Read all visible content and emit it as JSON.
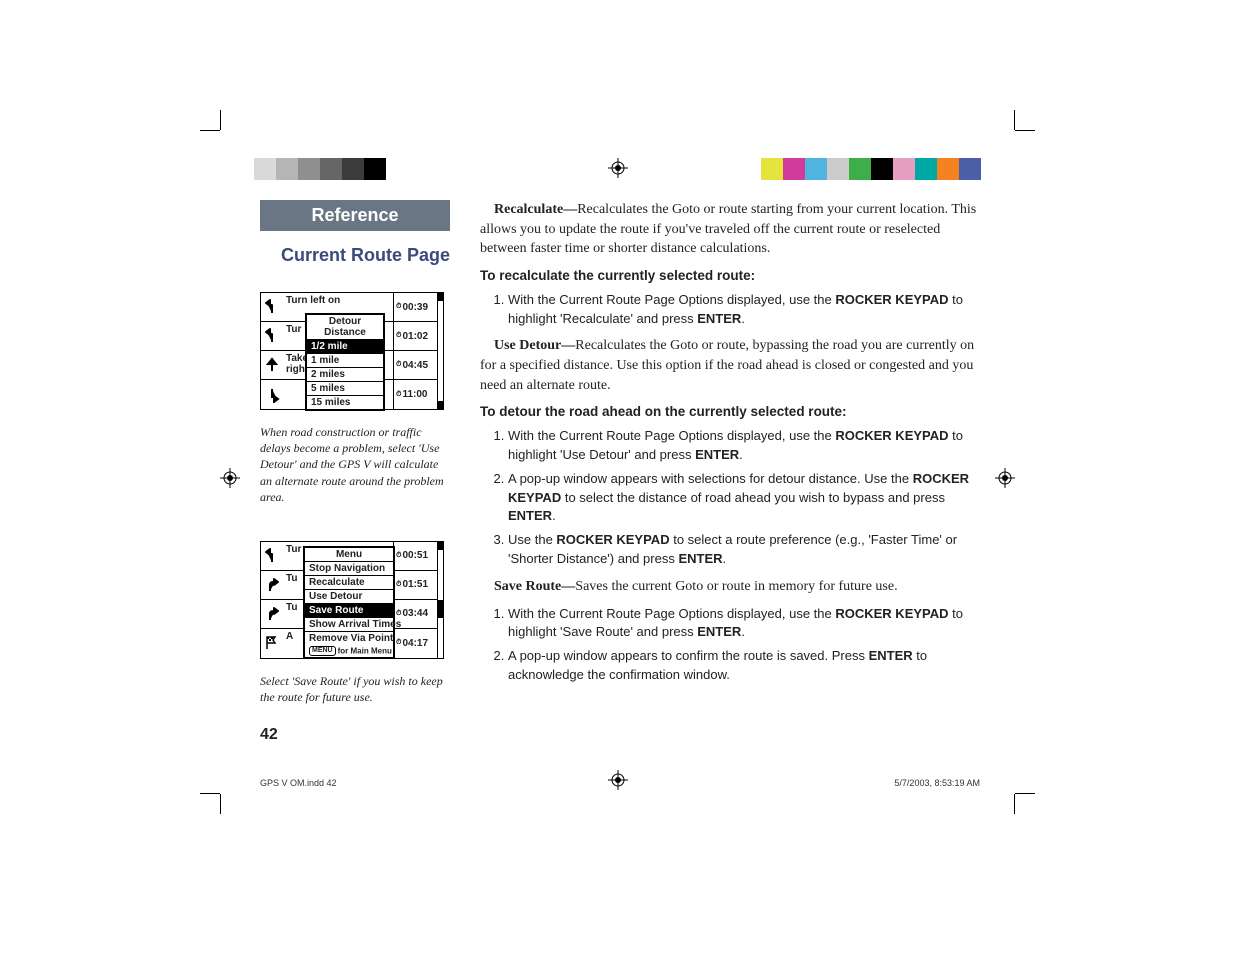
{
  "header": {
    "reference": "Reference",
    "section": "Current Route Page"
  },
  "colorbar_left": [
    "#d9d9d9",
    "#b5b5b5",
    "#8f8f8f",
    "#666666",
    "#3b3b3b",
    "#000000"
  ],
  "colorbar_right": [
    "#e4e43c",
    "#d13b9a",
    "#4fb4e0",
    "#cccccc",
    "#3eae4a",
    "#000000",
    "#e79ec2",
    "#00a8a3",
    "#f58220",
    "#4a5fa5"
  ],
  "screenshot1": {
    "rows": [
      {
        "icon": "arrow-left-up",
        "text_top": "Turn left on",
        "time": "00:39",
        "popup": true
      },
      {
        "icon": "arrow-left-up",
        "text_top": "Tur",
        "time": "01:02"
      },
      {
        "icon": "arrow-up",
        "text_top": "Take",
        "text_bot": "right",
        "time": "04:45"
      },
      {
        "icon": "arrow-down-right",
        "text_top": "",
        "time": "11:00"
      }
    ],
    "popup": {
      "title": "Detour Distance",
      "items": [
        "1/2 mile",
        "1 mile",
        "2 miles",
        "5 miles",
        "15 miles"
      ],
      "selected": 0
    }
  },
  "caption1": "When road construction or traffic delays become a problem, select 'Use Detour' and the GPS V will calculate an alternate route around the problem area.",
  "screenshot2": {
    "rows": [
      {
        "icon": "arrow-left-up",
        "text_top": "Tur",
        "time": "00:51"
      },
      {
        "icon": "arrow-right-turn",
        "text_top": "Tu",
        "time": "01:51"
      },
      {
        "icon": "arrow-right-turn",
        "text_top": "Tu",
        "time": "03:44"
      },
      {
        "icon": "flag",
        "text_top": "A",
        "time": "04:17"
      }
    ],
    "popup": {
      "title": "Menu",
      "items": [
        "Stop Navigation",
        "Recalculate",
        "Use Detour",
        "Save Route",
        "Show Arrival Times",
        "Remove Via Point"
      ],
      "footer_label": "MENU",
      "footer_text": "for Main Menu",
      "selected": 3
    }
  },
  "caption2": "Select 'Save Route' if you wish to keep the route for future use.",
  "body": {
    "recalc_label": "Recalculate—",
    "recalc_text": "Recalculates the Goto or route starting from your current location. This allows you to update the route if you've traveled off the current route or reselected between faster time or shorter distance calculations.",
    "hd1": "To recalculate the currently selected route:",
    "step1a": "With the Current Route Page Options displayed, use the ",
    "rocker": "ROCKER KEYPAD",
    "step1b": " to highlight 'Recalculate' and press ",
    "enter": "ENTER",
    "detour_label": "Use Detour—",
    "detour_text": "Recalculates the Goto or route, bypassing the road you are currently on for a specified distance. Use this option if the road ahead is closed or congested and you need an alternate route.",
    "hd2": "To detour the road ahead on the currently selected route:",
    "d1b": " to highlight 'Use Detour' and press ",
    "d2a": "A pop-up window appears with selections for detour distance. Use the ",
    "d2b": " to select the distance of road ahead you wish to bypass and press ",
    "d3a": "Use the ",
    "d3b": " to select a route preference (e.g., 'Faster Time' or 'Shorter Distance') and press ",
    "save_label": "Save Route—",
    "save_text": "Saves the current Goto or route in memory for future use.",
    "s1b": " to highlight 'Save Route' and press ",
    "s2a": "A pop-up window appears to confirm the route is saved. Press ",
    "s2b": " to acknowledge the confirmation window."
  },
  "page_number": "42",
  "footer": {
    "file": "GPS V OM.indd   42",
    "date": "5/7/2003, 8:53:19 AM"
  }
}
